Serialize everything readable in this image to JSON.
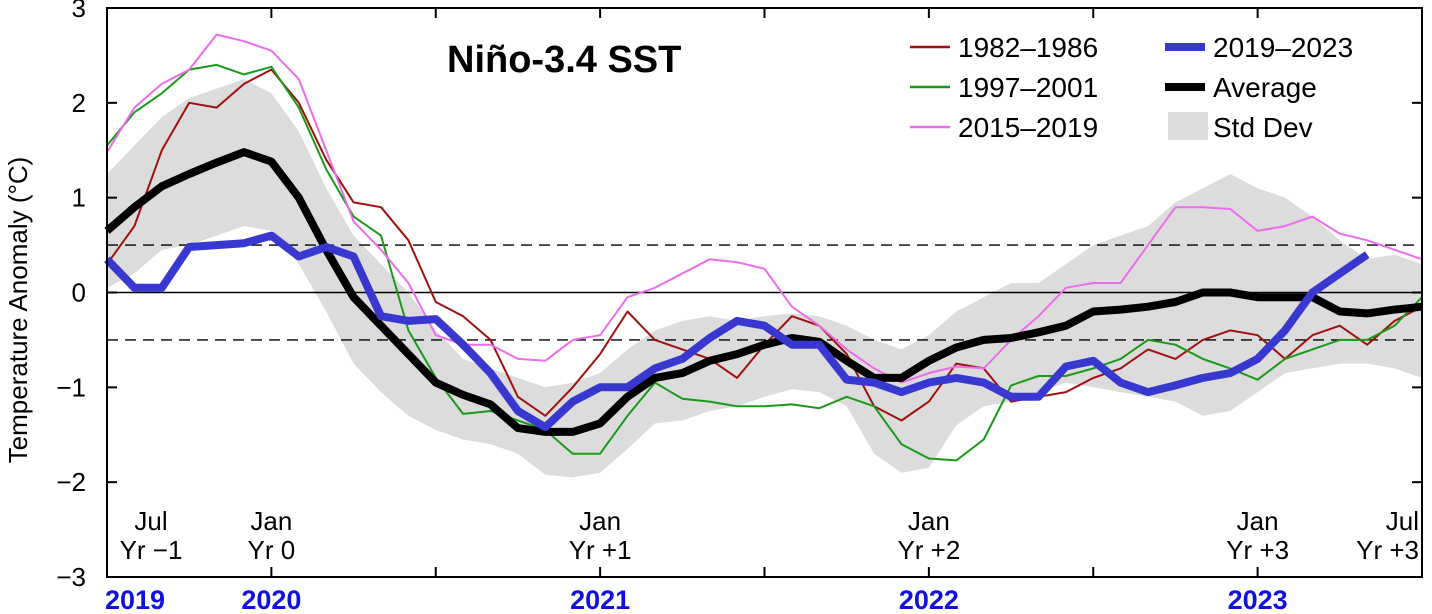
{
  "chart_data": {
    "type": "line",
    "title": "Niño-3.4 SST",
    "ylabel": "Temperature Anomaly (°C)",
    "xlabel": "",
    "ylim": [
      -3,
      3
    ],
    "xlim": [
      0,
      48
    ],
    "x_unit": "months since Jul Yr −1",
    "yticks": [
      3,
      2,
      1,
      0,
      -1,
      -2,
      -3
    ],
    "ytick_labels": [
      "3",
      "2",
      "1",
      "0",
      "−1",
      "−2",
      "−3"
    ],
    "reference_lines": [
      0.5,
      0,
      -0.5
    ],
    "legend_position": "top-right",
    "grid": false,
    "annotations": [
      {
        "line1": "Jul",
        "line2": "Yr −1",
        "x": 0
      },
      {
        "line1": "Jan",
        "line2": "Yr 0",
        "x": 6
      },
      {
        "line1": "Jan",
        "line2": "Yr +1",
        "x": 18
      },
      {
        "line1": "Jan",
        "line2": "Yr +2",
        "x": 30
      },
      {
        "line1": "Jan",
        "line2": "Yr +3",
        "x": 42
      },
      {
        "line1": "Jul",
        "line2": "Yr +3",
        "x": 48
      }
    ],
    "year_labels": [
      {
        "text": "2019",
        "x": 0
      },
      {
        "text": "2020",
        "x": 6
      },
      {
        "text": "2021",
        "x": 18
      },
      {
        "text": "2022",
        "x": 30
      },
      {
        "text": "2023",
        "x": 42
      }
    ],
    "year_label_color": "#1010e0",
    "series": [
      {
        "name": "1982–1986",
        "color": "#a01010",
        "values": [
          0.3,
          0.7,
          1.5,
          2.0,
          1.95,
          2.2,
          2.35,
          2.0,
          1.4,
          0.95,
          0.9,
          0.55,
          -0.1,
          -0.25,
          -0.5,
          -1.1,
          -1.3,
          -1.0,
          -0.65,
          -0.2,
          -0.5,
          -0.6,
          -0.7,
          -0.9,
          -0.55,
          -0.25,
          -0.35,
          -0.65,
          -1.2,
          -1.35,
          -1.15,
          -0.75,
          -0.8,
          -1.15,
          -1.1,
          -1.05,
          -0.9,
          -0.8,
          -0.6,
          -0.7,
          -0.5,
          -0.4,
          -0.45,
          -0.7,
          -0.45,
          -0.35,
          -0.55,
          -0.3,
          -0.15
        ]
      },
      {
        "name": "1997–2001",
        "color": "#1a9a1a",
        "values": [
          1.55,
          1.9,
          2.1,
          2.35,
          2.4,
          2.3,
          2.38,
          1.95,
          1.3,
          0.8,
          0.6,
          -0.4,
          -0.9,
          -1.28,
          -1.25,
          -1.35,
          -1.45,
          -1.7,
          -1.7,
          -1.3,
          -0.95,
          -1.12,
          -1.15,
          -1.2,
          -1.2,
          -1.18,
          -1.22,
          -1.1,
          -1.2,
          -1.6,
          -1.75,
          -1.77,
          -1.55,
          -0.98,
          -0.88,
          -0.88,
          -0.8,
          -0.7,
          -0.5,
          -0.55,
          -0.7,
          -0.8,
          -0.92,
          -0.7,
          -0.6,
          -0.5,
          -0.5,
          -0.35,
          -0.05
        ]
      },
      {
        "name": "2015–2019",
        "color": "#ec6cec",
        "values": [
          1.48,
          1.95,
          2.2,
          2.35,
          2.72,
          2.65,
          2.55,
          2.25,
          1.5,
          0.75,
          0.45,
          0.1,
          -0.45,
          -0.55,
          -0.55,
          -0.7,
          -0.72,
          -0.5,
          -0.45,
          -0.05,
          0.05,
          0.2,
          0.35,
          0.32,
          0.25,
          -0.15,
          -0.35,
          -0.6,
          -0.8,
          -0.95,
          -0.85,
          -0.78,
          -0.8,
          -0.5,
          -0.25,
          0.05,
          0.1,
          0.1,
          0.5,
          0.9,
          0.9,
          0.88,
          0.65,
          0.7,
          0.8,
          0.62,
          0.55,
          0.45,
          0.35
        ]
      },
      {
        "name": "2019–2023",
        "color": "#3838d0",
        "values": [
          0.35,
          0.05,
          0.05,
          0.48,
          0.5,
          0.52,
          0.6,
          0.38,
          0.48,
          0.38,
          -0.25,
          -0.3,
          -0.28,
          -0.55,
          -0.85,
          -1.25,
          -1.42,
          -1.15,
          -1.0,
          -1.0,
          -0.8,
          -0.7,
          -0.48,
          -0.3,
          -0.35,
          -0.55,
          -0.55,
          -0.92,
          -0.95,
          -1.05,
          -0.95,
          -0.9,
          -0.95,
          -1.1,
          -1.1,
          -0.78,
          -0.72,
          -0.95,
          -1.05,
          -0.98,
          -0.9,
          -0.85,
          -0.7,
          -0.4,
          0.0,
          0.2,
          0.4
        ]
      },
      {
        "name": "Average",
        "color": "#000000",
        "values": [
          0.65,
          0.9,
          1.12,
          1.25,
          1.37,
          1.48,
          1.38,
          1.0,
          0.45,
          -0.05,
          -0.35,
          -0.65,
          -0.95,
          -1.08,
          -1.18,
          -1.43,
          -1.47,
          -1.47,
          -1.38,
          -1.1,
          -0.9,
          -0.85,
          -0.72,
          -0.65,
          -0.55,
          -0.48,
          -0.52,
          -0.72,
          -0.9,
          -0.9,
          -0.72,
          -0.58,
          -0.5,
          -0.48,
          -0.42,
          -0.35,
          -0.2,
          -0.18,
          -0.15,
          -0.1,
          0.0,
          0.0,
          -0.05,
          -0.05,
          -0.05,
          -0.2,
          -0.22,
          -0.18,
          -0.15
        ]
      }
    ],
    "std_dev": {
      "name": "Std Dev",
      "color": "#dcdcdc",
      "upper": [
        1.25,
        1.55,
        1.85,
        2.05,
        2.15,
        2.25,
        2.1,
        1.7,
        1.1,
        0.6,
        0.3,
        0.0,
        -0.4,
        -0.7,
        -0.8,
        -0.9,
        -1.0,
        -0.95,
        -0.85,
        -0.6,
        -0.4,
        -0.3,
        -0.25,
        -0.3,
        -0.25,
        -0.22,
        -0.25,
        -0.35,
        -0.5,
        -0.6,
        -0.45,
        -0.2,
        -0.05,
        0.1,
        0.1,
        0.3,
        0.5,
        0.6,
        0.7,
        0.95,
        1.1,
        1.25,
        1.1,
        1.0,
        0.8,
        0.55,
        0.35,
        0.4,
        0.3
      ],
      "lower": [
        0.05,
        0.2,
        0.45,
        0.5,
        0.6,
        0.7,
        0.65,
        0.3,
        -0.2,
        -0.75,
        -1.05,
        -1.3,
        -1.45,
        -1.55,
        -1.6,
        -1.7,
        -1.92,
        -1.95,
        -1.9,
        -1.65,
        -1.38,
        -1.35,
        -1.25,
        -1.2,
        -1.1,
        -1.02,
        -1.05,
        -1.2,
        -1.7,
        -1.9,
        -1.85,
        -1.4,
        -1.2,
        -1.15,
        -1.05,
        -0.95,
        -1.0,
        -1.05,
        -1.1,
        -1.15,
        -1.3,
        -1.25,
        -1.05,
        -0.85,
        -0.8,
        -0.75,
        -0.75,
        -0.8,
        -0.9
      ]
    }
  }
}
